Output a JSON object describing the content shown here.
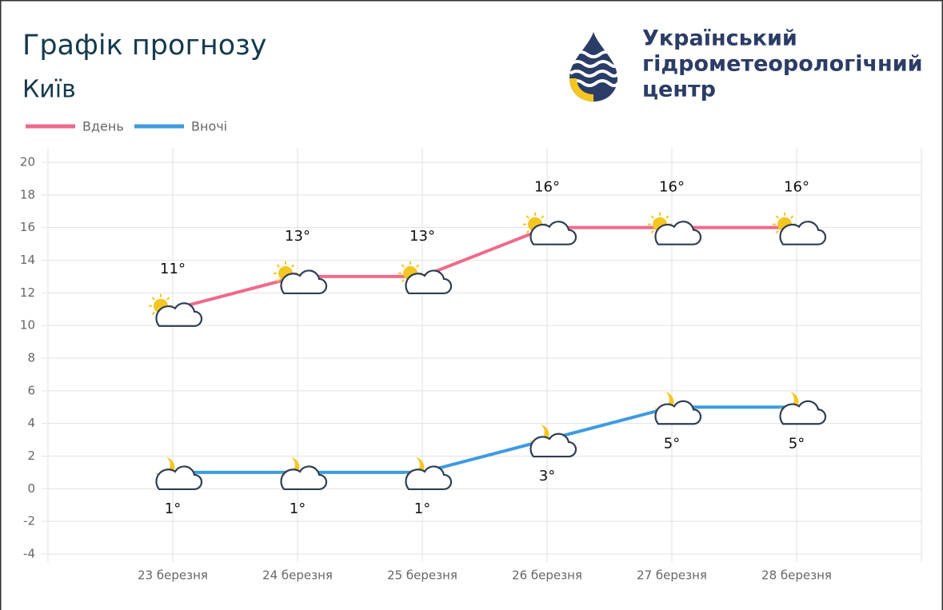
{
  "header": {
    "title": "Графік прогнозу",
    "city": "Київ",
    "org": [
      "Український",
      "гідрометеорологічний",
      "центр"
    ]
  },
  "chart_data": {
    "type": "line",
    "categories": [
      "23 березня",
      "24 березня",
      "25 березня",
      "26 березня",
      "27 березня",
      "28 березня"
    ],
    "series": [
      {
        "name": "Вдень",
        "color": "#ef6a8a",
        "values": [
          11,
          13,
          13,
          16,
          16,
          16
        ],
        "value_labels": [
          "11°",
          "13°",
          "13°",
          "16°",
          "16°",
          "16°"
        ]
      },
      {
        "name": "Вночі",
        "color": "#3d9be0",
        "values": [
          1,
          1,
          1,
          3,
          5,
          5
        ],
        "value_labels": [
          "1°",
          "1°",
          "1°",
          "3°",
          "5°",
          "5°"
        ]
      }
    ],
    "ylim": [
      -4,
      20
    ],
    "yticks": [
      -4,
      -2,
      0,
      2,
      4,
      6,
      8,
      10,
      12,
      14,
      16,
      18,
      20
    ],
    "grid": true
  }
}
